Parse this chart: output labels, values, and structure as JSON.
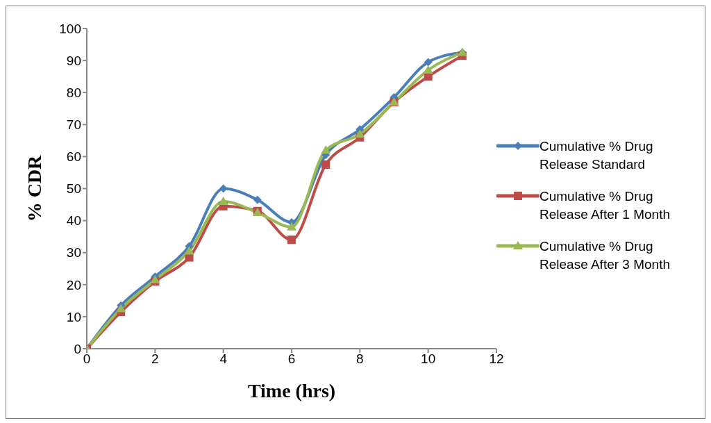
{
  "chart_data": {
    "type": "line",
    "xlabel": "Time (hrs)",
    "ylabel": "% CDR",
    "x": [
      0,
      1,
      2,
      3,
      4,
      5,
      6,
      7,
      8,
      9,
      10,
      11
    ],
    "xlim": [
      0,
      12
    ],
    "xticks": [
      0,
      2,
      4,
      6,
      8,
      10,
      12
    ],
    "ylim": [
      0,
      100
    ],
    "yticks": [
      0,
      10,
      20,
      30,
      40,
      50,
      60,
      70,
      80,
      90,
      100
    ],
    "grid": false,
    "legend": "right",
    "line_style": "solid",
    "series": [
      {
        "name": "Cumulative % Drug Release Standard",
        "color": "#4a7ebb",
        "marker": "diamond",
        "values": [
          0,
          13.5,
          22.5,
          32,
          50,
          46.5,
          39.5,
          60.5,
          68.5,
          78.5,
          89.5,
          92.5
        ]
      },
      {
        "name": "Cumulative % Drug Release After 1 Month",
        "color": "#be4b48",
        "marker": "square",
        "values": [
          0,
          11.5,
          21,
          28.5,
          44.5,
          43,
          34,
          57.5,
          66,
          77,
          85,
          91.5
        ]
      },
      {
        "name": "Cumulative % Drug Release After 3 Month",
        "color": "#98b954",
        "marker": "triangle",
        "values": [
          0,
          12.5,
          21.5,
          30.5,
          46,
          42.5,
          38,
          62,
          67,
          77,
          87,
          92.5
        ]
      }
    ]
  }
}
